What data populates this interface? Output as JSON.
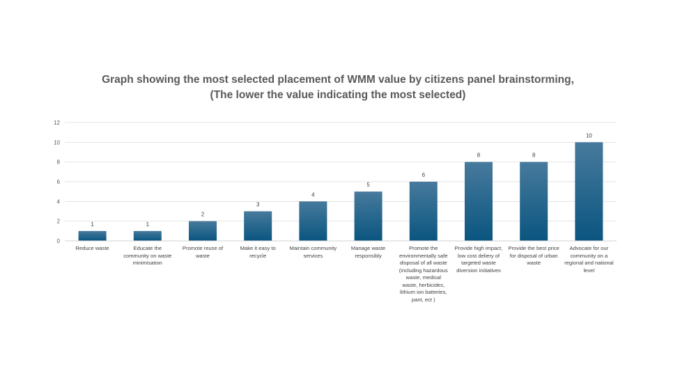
{
  "chart_data": {
    "type": "bar",
    "title": "Graph showing the most selected placement of WMM value by citizens panel brainstorming, (The lower the value indicating the most selected)",
    "xlabel": "",
    "ylabel": "",
    "ylim": [
      0,
      12
    ],
    "yticks": [
      0,
      2,
      4,
      6,
      8,
      10,
      12
    ],
    "grid": true,
    "legend": "none",
    "bar_color_top": "#477a9c",
    "bar_color_bottom": "#0a5580",
    "categories": [
      "Reduce waste",
      "Educate the community on waste minimisation",
      "Promote reuse of waste",
      "Make it easy to recycle",
      "Maintain community services",
      "Manage waste responsibly",
      "Promote the environmentally safe disposal of all waste (including hazardous waste, medical waste, herbicides, lithium ion batteries, pant, ect )",
      "Provide high impact, low cost deliery of targeted waste diversion initiatives",
      "Provide the best price for disposal of urban waste",
      "Advocate for our community on a regional and national level"
    ],
    "values": [
      1,
      1,
      2,
      3,
      4,
      5,
      6,
      8,
      8,
      10
    ]
  }
}
